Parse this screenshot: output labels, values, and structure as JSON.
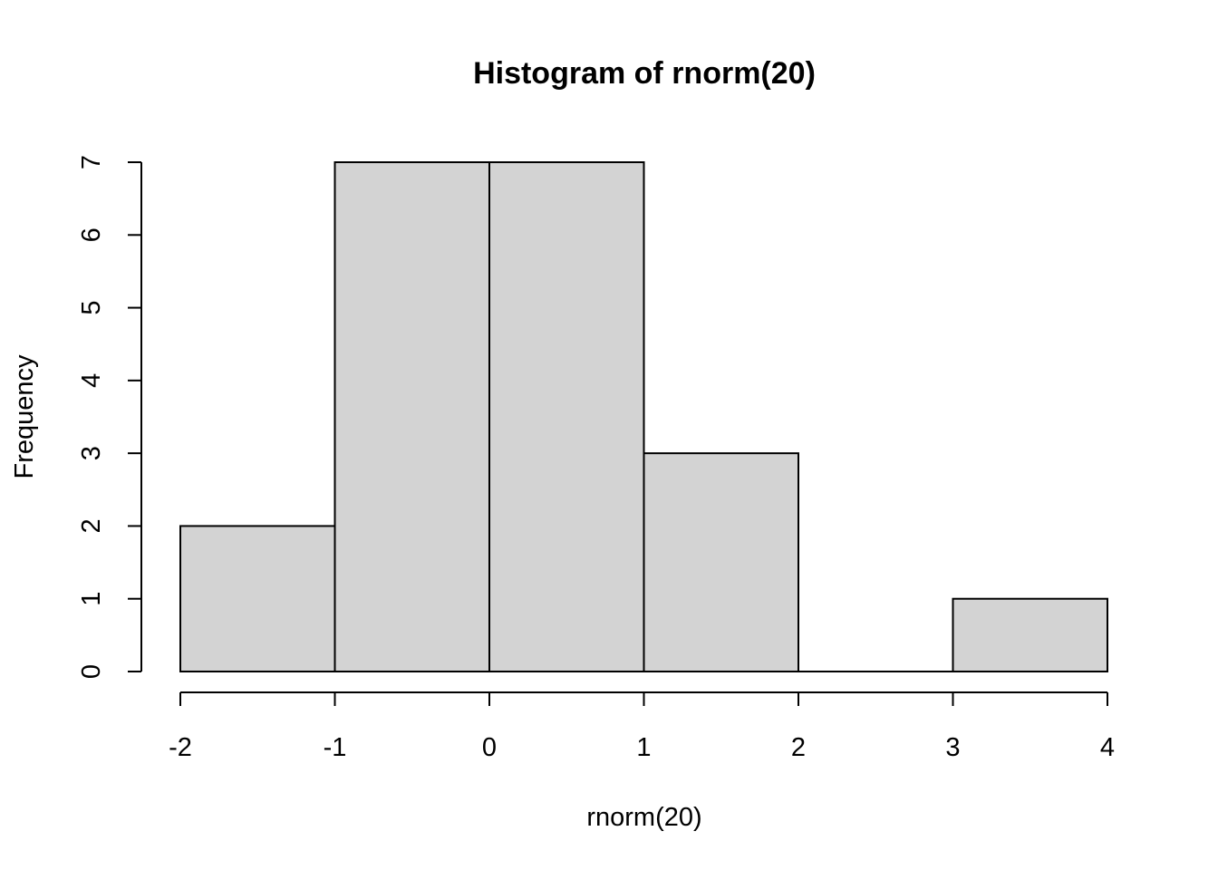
{
  "chart_data": {
    "type": "bar",
    "title": "Histogram of rnorm(20)",
    "xlabel": "rnorm(20)",
    "ylabel": "Frequency",
    "bins": [
      {
        "x0": -2,
        "x1": -1,
        "count": 2
      },
      {
        "x0": -1,
        "x1": 0,
        "count": 7
      },
      {
        "x0": 0,
        "x1": 1,
        "count": 7
      },
      {
        "x0": 1,
        "x1": 2,
        "count": 3
      },
      {
        "x0": 2,
        "x1": 3,
        "count": 0
      },
      {
        "x0": 3,
        "x1": 4,
        "count": 1
      }
    ],
    "xlim": [
      -2,
      4
    ],
    "ylim": [
      0,
      7
    ],
    "x_ticks": [
      -2,
      -1,
      0,
      1,
      2,
      3,
      4
    ],
    "y_ticks": [
      0,
      1,
      2,
      3,
      4,
      5,
      6,
      7
    ],
    "bar_fill": "#d3d3d3",
    "grid": false
  }
}
